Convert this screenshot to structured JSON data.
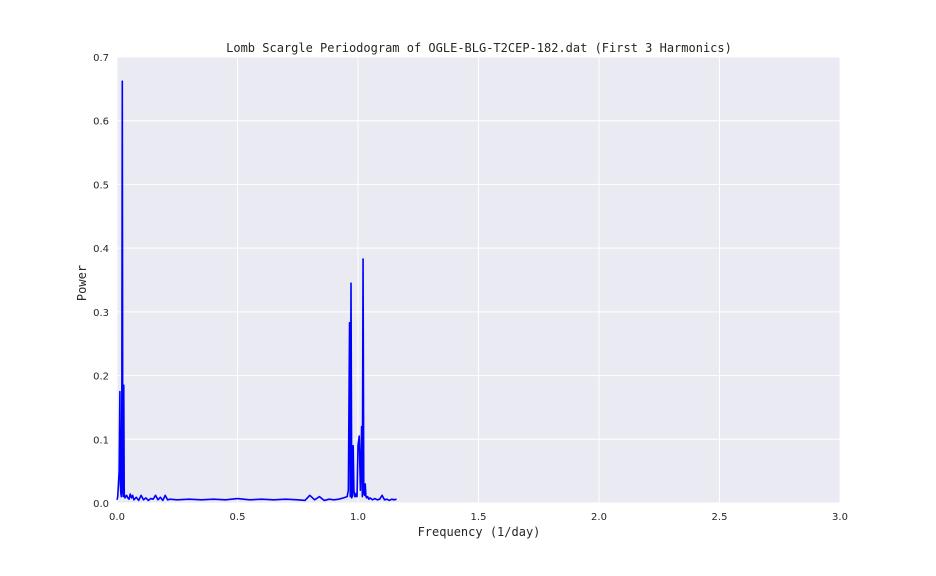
{
  "chart_data": {
    "type": "line",
    "title": "Lomb Scargle Periodogram of OGLE-BLG-T2CEP-182.dat (First 3 Harmonics)",
    "xlabel": "Frequency (1/day)",
    "ylabel": "Power",
    "xlim": [
      0,
      3.0
    ],
    "ylim": [
      0,
      0.7
    ],
    "xticks": [
      "0.0",
      "0.5",
      "1.0",
      "1.5",
      "2.0",
      "2.5",
      "3.0"
    ],
    "xtick_values": [
      0,
      0.5,
      1.0,
      1.5,
      2.0,
      2.5,
      3.0
    ],
    "yticks": [
      "0.0",
      "0.1",
      "0.2",
      "0.3",
      "0.4",
      "0.5",
      "0.6",
      "0.7"
    ],
    "ytick_values": [
      0,
      0.1,
      0.2,
      0.3,
      0.4,
      0.5,
      0.6,
      0.7
    ],
    "grid": true,
    "colors": {
      "series": "#0000ff",
      "background": "#eaeaf2",
      "grid": "#ffffff"
    },
    "series": [
      {
        "x": [
          0.0,
          0.003,
          0.006,
          0.009,
          0.012,
          0.014,
          0.016,
          0.018,
          0.02,
          0.022,
          0.024,
          0.026,
          0.028,
          0.03,
          0.033,
          0.036,
          0.04,
          0.045,
          0.05,
          0.055,
          0.06,
          0.065,
          0.07,
          0.08,
          0.09,
          0.1,
          0.11,
          0.12,
          0.13,
          0.14,
          0.15,
          0.16,
          0.17,
          0.18,
          0.19,
          0.2,
          0.21,
          0.22,
          0.25,
          0.3,
          0.35,
          0.4,
          0.45,
          0.5,
          0.55,
          0.6,
          0.65,
          0.7,
          0.75,
          0.78,
          0.8,
          0.82,
          0.84,
          0.86,
          0.88,
          0.9,
          0.92,
          0.94,
          0.955,
          0.96,
          0.965,
          0.968,
          0.971,
          0.974,
          0.977,
          0.98,
          0.983,
          0.986,
          0.989,
          0.992,
          0.996,
          1.0,
          1.005,
          1.01,
          1.015,
          1.018,
          1.021,
          1.024,
          1.027,
          1.03,
          1.033,
          1.036,
          1.04,
          1.045,
          1.05,
          1.06,
          1.07,
          1.08,
          1.09,
          1.1,
          1.11,
          1.12,
          1.13,
          1.14,
          1.15,
          1.16
        ],
        "values": [
          0.005,
          0.01,
          0.03,
          0.05,
          0.175,
          0.03,
          0.015,
          0.01,
          0.15,
          0.662,
          0.02,
          0.01,
          0.185,
          0.015,
          0.008,
          0.01,
          0.012,
          0.008,
          0.006,
          0.014,
          0.008,
          0.012,
          0.005,
          0.009,
          0.004,
          0.012,
          0.005,
          0.008,
          0.004,
          0.007,
          0.006,
          0.012,
          0.005,
          0.009,
          0.004,
          0.012,
          0.005,
          0.006,
          0.005,
          0.006,
          0.005,
          0.006,
          0.005,
          0.007,
          0.005,
          0.006,
          0.005,
          0.006,
          0.005,
          0.004,
          0.012,
          0.005,
          0.01,
          0.004,
          0.006,
          0.005,
          0.006,
          0.008,
          0.01,
          0.02,
          0.283,
          0.01,
          0.345,
          0.008,
          0.012,
          0.09,
          0.02,
          0.01,
          0.01,
          0.015,
          0.01,
          0.09,
          0.105,
          0.02,
          0.12,
          0.01,
          0.383,
          0.015,
          0.012,
          0.03,
          0.01,
          0.008,
          0.01,
          0.006,
          0.008,
          0.005,
          0.007,
          0.005,
          0.006,
          0.012,
          0.005,
          0.006,
          0.004,
          0.006,
          0.005,
          0.006
        ]
      }
    ]
  }
}
